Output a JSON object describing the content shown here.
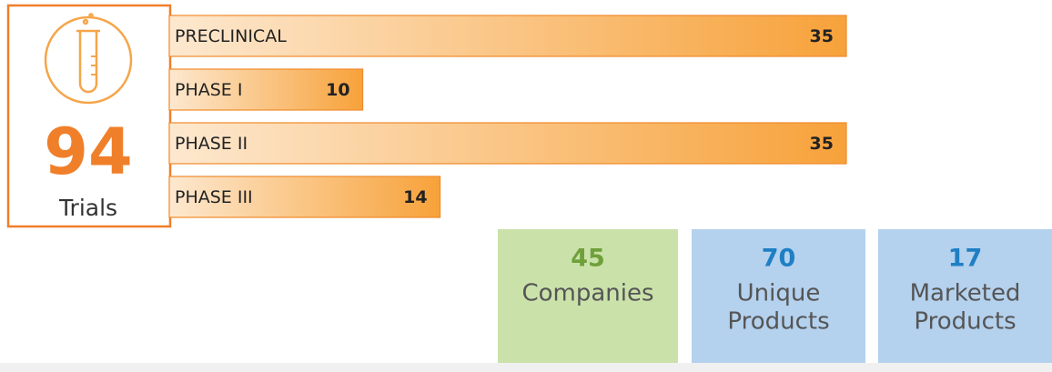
{
  "chart_data": {
    "type": "bar",
    "orientation": "horizontal",
    "categories": [
      "PRECLINICAL",
      "PHASE I",
      "PHASE II",
      "PHASE III"
    ],
    "values": [
      35,
      10,
      35,
      14
    ],
    "color": "#f7a23a"
  },
  "summary": {
    "value": 94,
    "label": "Trials",
    "color": "#f07f2a"
  },
  "stats": [
    {
      "value": 45,
      "label": [
        "Companies"
      ],
      "color": "#6fa03a",
      "background": "#cae2aa"
    },
    {
      "value": 70,
      "label": [
        "Unique",
        "Products"
      ],
      "color": "#1f7fc4",
      "background": "#b4d1ee"
    },
    {
      "value": 17,
      "label": [
        "Marketed",
        "Products"
      ],
      "color": "#1f7fc4",
      "background": "#b4d1ee"
    }
  ]
}
